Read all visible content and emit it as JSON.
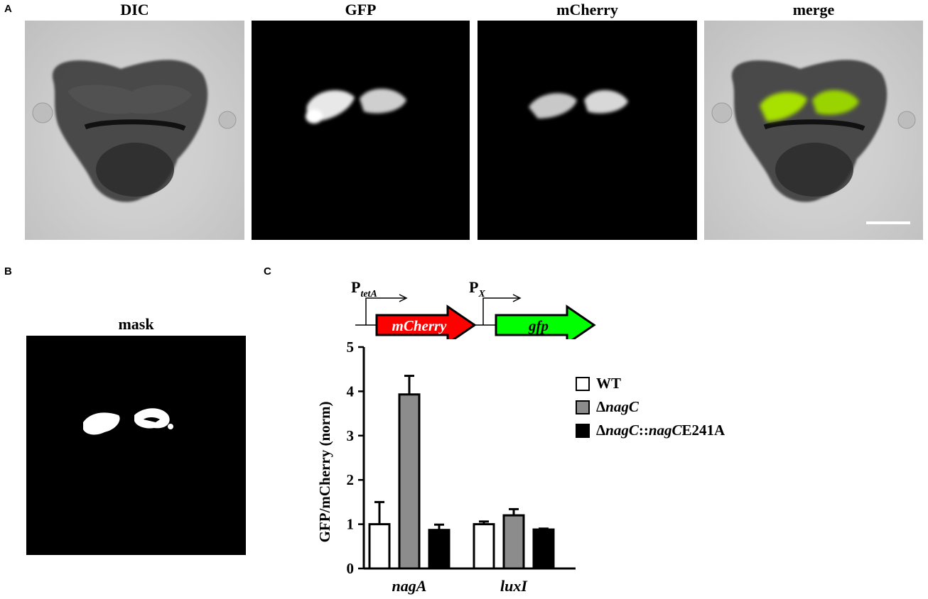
{
  "panel_labels": {
    "a": "A",
    "b": "B",
    "c": "C"
  },
  "panel_a": {
    "titles": [
      "DIC",
      "GFP",
      "mCherry",
      "merge"
    ]
  },
  "panel_b": {
    "title": "mask"
  },
  "construct": {
    "promoter1_main": "P",
    "promoter1_sub": "tetA",
    "promoter2_main": "P",
    "promoter2_sub": "X",
    "gene1": "mCherry",
    "gene2": "gfp",
    "gene1_color": "#ff0000",
    "gene2_color": "#00ff00"
  },
  "chart_data": {
    "type": "bar",
    "categories": [
      "nagA",
      "luxI"
    ],
    "series": [
      {
        "name": "WT",
        "values": [
          1.0,
          1.0
        ],
        "errors": [
          0.5,
          0.06
        ],
        "color": "#ffffff"
      },
      {
        "name": "ΔnagC",
        "values": [
          3.93,
          1.2
        ],
        "errors": [
          0.42,
          0.14
        ],
        "color": "#8c8c8c"
      },
      {
        "name": "ΔnagC::nagCE241A",
        "values": [
          0.87,
          0.88
        ],
        "errors": [
          0.12,
          0.02
        ],
        "color": "#000000"
      }
    ],
    "ylabel": "GFP/mCherry (norm)",
    "ylim": [
      0,
      5
    ],
    "yticks": [
      "0",
      "1",
      "2",
      "3",
      "4",
      "5"
    ],
    "legend_position": "right",
    "legend_parts": [
      [
        {
          "t": "WT",
          "i": false
        }
      ],
      [
        {
          "t": "Δ",
          "i": false
        },
        {
          "t": "nagC",
          "i": true
        }
      ],
      [
        {
          "t": "Δ",
          "i": false
        },
        {
          "t": "nagC",
          "i": true
        },
        {
          "t": "::",
          "i": false
        },
        {
          "t": "nagC",
          "i": true
        },
        {
          "t": "E241A",
          "i": false
        }
      ]
    ]
  }
}
